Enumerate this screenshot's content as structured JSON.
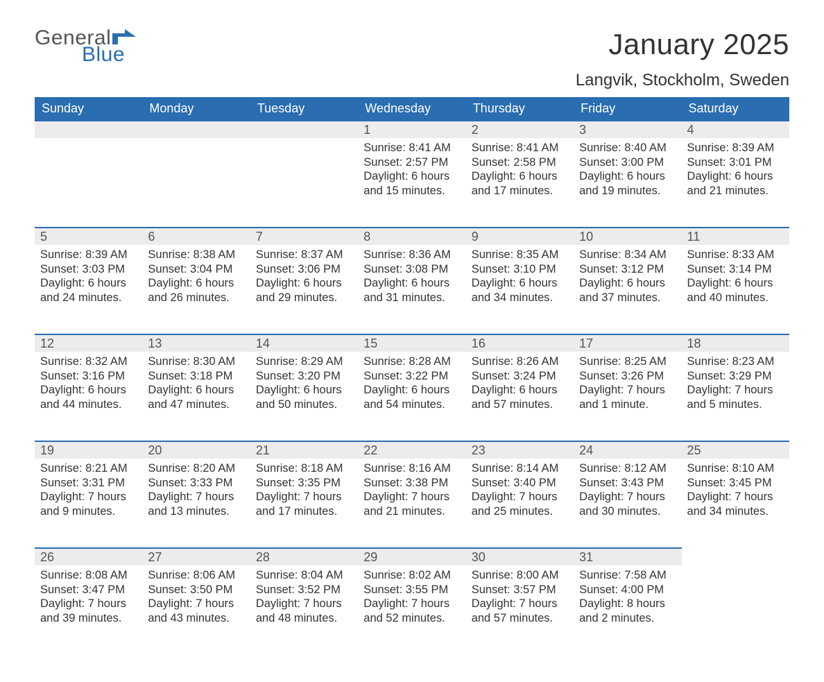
{
  "brand": {
    "word1": "General",
    "word2": "Blue",
    "accent": "#2a6db0"
  },
  "title": "January 2025",
  "location": "Langvik, Stockholm, Sweden",
  "header_bg": "#2a6db0",
  "header_fg": "#ffffff",
  "daynum_bg": "#ececec",
  "daynum_border": "#2a6db0",
  "text_color": "#333333",
  "weekdays": [
    "Sunday",
    "Monday",
    "Tuesday",
    "Wednesday",
    "Thursday",
    "Friday",
    "Saturday"
  ],
  "weeks": [
    [
      null,
      null,
      null,
      {
        "n": "1",
        "sr": "Sunrise: 8:41 AM",
        "ss": "Sunset: 2:57 PM",
        "d1": "Daylight: 6 hours",
        "d2": "and 15 minutes."
      },
      {
        "n": "2",
        "sr": "Sunrise: 8:41 AM",
        "ss": "Sunset: 2:58 PM",
        "d1": "Daylight: 6 hours",
        "d2": "and 17 minutes."
      },
      {
        "n": "3",
        "sr": "Sunrise: 8:40 AM",
        "ss": "Sunset: 3:00 PM",
        "d1": "Daylight: 6 hours",
        "d2": "and 19 minutes."
      },
      {
        "n": "4",
        "sr": "Sunrise: 8:39 AM",
        "ss": "Sunset: 3:01 PM",
        "d1": "Daylight: 6 hours",
        "d2": "and 21 minutes."
      }
    ],
    [
      {
        "n": "5",
        "sr": "Sunrise: 8:39 AM",
        "ss": "Sunset: 3:03 PM",
        "d1": "Daylight: 6 hours",
        "d2": "and 24 minutes."
      },
      {
        "n": "6",
        "sr": "Sunrise: 8:38 AM",
        "ss": "Sunset: 3:04 PM",
        "d1": "Daylight: 6 hours",
        "d2": "and 26 minutes."
      },
      {
        "n": "7",
        "sr": "Sunrise: 8:37 AM",
        "ss": "Sunset: 3:06 PM",
        "d1": "Daylight: 6 hours",
        "d2": "and 29 minutes."
      },
      {
        "n": "8",
        "sr": "Sunrise: 8:36 AM",
        "ss": "Sunset: 3:08 PM",
        "d1": "Daylight: 6 hours",
        "d2": "and 31 minutes."
      },
      {
        "n": "9",
        "sr": "Sunrise: 8:35 AM",
        "ss": "Sunset: 3:10 PM",
        "d1": "Daylight: 6 hours",
        "d2": "and 34 minutes."
      },
      {
        "n": "10",
        "sr": "Sunrise: 8:34 AM",
        "ss": "Sunset: 3:12 PM",
        "d1": "Daylight: 6 hours",
        "d2": "and 37 minutes."
      },
      {
        "n": "11",
        "sr": "Sunrise: 8:33 AM",
        "ss": "Sunset: 3:14 PM",
        "d1": "Daylight: 6 hours",
        "d2": "and 40 minutes."
      }
    ],
    [
      {
        "n": "12",
        "sr": "Sunrise: 8:32 AM",
        "ss": "Sunset: 3:16 PM",
        "d1": "Daylight: 6 hours",
        "d2": "and 44 minutes."
      },
      {
        "n": "13",
        "sr": "Sunrise: 8:30 AM",
        "ss": "Sunset: 3:18 PM",
        "d1": "Daylight: 6 hours",
        "d2": "and 47 minutes."
      },
      {
        "n": "14",
        "sr": "Sunrise: 8:29 AM",
        "ss": "Sunset: 3:20 PM",
        "d1": "Daylight: 6 hours",
        "d2": "and 50 minutes."
      },
      {
        "n": "15",
        "sr": "Sunrise: 8:28 AM",
        "ss": "Sunset: 3:22 PM",
        "d1": "Daylight: 6 hours",
        "d2": "and 54 minutes."
      },
      {
        "n": "16",
        "sr": "Sunrise: 8:26 AM",
        "ss": "Sunset: 3:24 PM",
        "d1": "Daylight: 6 hours",
        "d2": "and 57 minutes."
      },
      {
        "n": "17",
        "sr": "Sunrise: 8:25 AM",
        "ss": "Sunset: 3:26 PM",
        "d1": "Daylight: 7 hours",
        "d2": "and 1 minute."
      },
      {
        "n": "18",
        "sr": "Sunrise: 8:23 AM",
        "ss": "Sunset: 3:29 PM",
        "d1": "Daylight: 7 hours",
        "d2": "and 5 minutes."
      }
    ],
    [
      {
        "n": "19",
        "sr": "Sunrise: 8:21 AM",
        "ss": "Sunset: 3:31 PM",
        "d1": "Daylight: 7 hours",
        "d2": "and 9 minutes."
      },
      {
        "n": "20",
        "sr": "Sunrise: 8:20 AM",
        "ss": "Sunset: 3:33 PM",
        "d1": "Daylight: 7 hours",
        "d2": "and 13 minutes."
      },
      {
        "n": "21",
        "sr": "Sunrise: 8:18 AM",
        "ss": "Sunset: 3:35 PM",
        "d1": "Daylight: 7 hours",
        "d2": "and 17 minutes."
      },
      {
        "n": "22",
        "sr": "Sunrise: 8:16 AM",
        "ss": "Sunset: 3:38 PM",
        "d1": "Daylight: 7 hours",
        "d2": "and 21 minutes."
      },
      {
        "n": "23",
        "sr": "Sunrise: 8:14 AM",
        "ss": "Sunset: 3:40 PM",
        "d1": "Daylight: 7 hours",
        "d2": "and 25 minutes."
      },
      {
        "n": "24",
        "sr": "Sunrise: 8:12 AM",
        "ss": "Sunset: 3:43 PM",
        "d1": "Daylight: 7 hours",
        "d2": "and 30 minutes."
      },
      {
        "n": "25",
        "sr": "Sunrise: 8:10 AM",
        "ss": "Sunset: 3:45 PM",
        "d1": "Daylight: 7 hours",
        "d2": "and 34 minutes."
      }
    ],
    [
      {
        "n": "26",
        "sr": "Sunrise: 8:08 AM",
        "ss": "Sunset: 3:47 PM",
        "d1": "Daylight: 7 hours",
        "d2": "and 39 minutes."
      },
      {
        "n": "27",
        "sr": "Sunrise: 8:06 AM",
        "ss": "Sunset: 3:50 PM",
        "d1": "Daylight: 7 hours",
        "d2": "and 43 minutes."
      },
      {
        "n": "28",
        "sr": "Sunrise: 8:04 AM",
        "ss": "Sunset: 3:52 PM",
        "d1": "Daylight: 7 hours",
        "d2": "and 48 minutes."
      },
      {
        "n": "29",
        "sr": "Sunrise: 8:02 AM",
        "ss": "Sunset: 3:55 PM",
        "d1": "Daylight: 7 hours",
        "d2": "and 52 minutes."
      },
      {
        "n": "30",
        "sr": "Sunrise: 8:00 AM",
        "ss": "Sunset: 3:57 PM",
        "d1": "Daylight: 7 hours",
        "d2": "and 57 minutes."
      },
      {
        "n": "31",
        "sr": "Sunrise: 7:58 AM",
        "ss": "Sunset: 4:00 PM",
        "d1": "Daylight: 8 hours",
        "d2": "and 2 minutes."
      },
      null
    ]
  ]
}
